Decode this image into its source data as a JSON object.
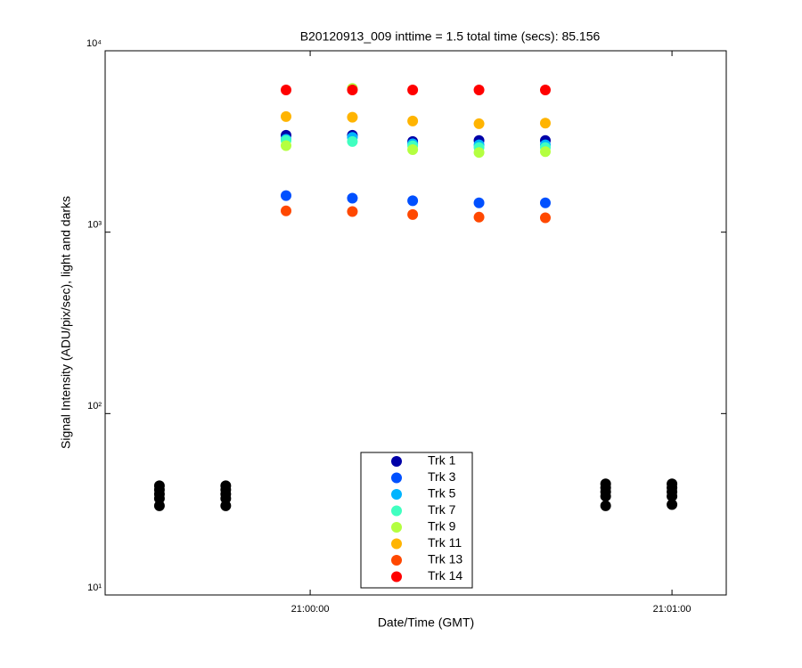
{
  "chart_data": {
    "type": "scatter",
    "title": "B20120913_009 inttime = 1.5 total time (secs): 85.156",
    "xlabel": "Date/Time (GMT)",
    "ylabel": "Signal Intensity (ADU/pix/sec), light and darks",
    "log_y": true,
    "xlim": [
      "20:59:26",
      "21:01:09"
    ],
    "xticks": [
      "21:00:00",
      "21:01:00"
    ],
    "ylim": [
      10,
      10000
    ],
    "yticks": [
      {
        "value": 10,
        "label": "10¹"
      },
      {
        "value": 100,
        "label": "10²"
      },
      {
        "value": 1000,
        "label": "10³"
      },
      {
        "value": 10000,
        "label": "10⁴"
      }
    ],
    "series": [
      {
        "name": "Trk 1",
        "color": "#0000a8",
        "x": [
          "20:59:56",
          "21:00:07",
          "21:00:17",
          "21:00:28",
          "21:00:39"
        ],
        "values": [
          3420,
          3420,
          3160,
          3200,
          3200
        ]
      },
      {
        "name": "Trk 3",
        "color": "#0050ff",
        "x": [
          "20:59:56",
          "21:00:07",
          "21:00:17",
          "21:00:28",
          "21:00:39"
        ],
        "values": [
          1590,
          1540,
          1490,
          1450,
          1450
        ]
      },
      {
        "name": "Trk 5",
        "color": "#00b4ff",
        "x": [
          "20:59:56",
          "21:00:07",
          "21:00:17",
          "21:00:28",
          "21:00:39"
        ],
        "values": [
          3250,
          3330,
          3070,
          3030,
          3030
        ]
      },
      {
        "name": "Trk 7",
        "color": "#40ffc0",
        "x": [
          "20:59:56",
          "21:00:07",
          "21:00:17",
          "21:00:28",
          "21:00:39"
        ],
        "values": [
          3200,
          3160,
          2990,
          2930,
          2930
        ]
      },
      {
        "name": "Trk 9",
        "color": "#b4ff40",
        "x": [
          "20:59:56",
          "21:00:07",
          "21:00:17",
          "21:00:28",
          "21:00:39"
        ],
        "values": [
          3000,
          6200,
          2850,
          2750,
          2780
        ]
      },
      {
        "name": "Trk 11",
        "color": "#ffb400",
        "x": [
          "20:59:56",
          "21:00:07",
          "21:00:17",
          "21:00:28",
          "21:00:39"
        ],
        "values": [
          4340,
          4300,
          4100,
          3960,
          3990
        ]
      },
      {
        "name": "Trk 13",
        "color": "#ff4800",
        "x": [
          "20:59:56",
          "21:00:07",
          "21:00:17",
          "21:00:28",
          "21:00:39"
        ],
        "values": [
          1310,
          1300,
          1250,
          1210,
          1200
        ]
      },
      {
        "name": "Trk 14",
        "color": "#ff0000",
        "x": [
          "20:59:56",
          "21:00:07",
          "21:00:17",
          "21:00:28",
          "21:00:39"
        ],
        "values": [
          6080,
          6080,
          6080,
          6080,
          6080
        ]
      },
      {
        "color": "#000000",
        "x": [
          "20:59:35",
          "20:59:35",
          "20:59:35",
          "20:59:35",
          "20:59:35",
          "20:59:46",
          "20:59:46",
          "20:59:46",
          "20:59:46",
          "20:59:46",
          "21:00:49",
          "21:00:49",
          "21:00:49",
          "21:00:49",
          "21:00:49",
          "21:01:00",
          "21:01:00",
          "21:01:00",
          "21:01:00",
          "21:01:00"
        ],
        "values": [
          40,
          38,
          36,
          34,
          31,
          40,
          38,
          36,
          34,
          31,
          41,
          39,
          37,
          35,
          31,
          41,
          39,
          37,
          35,
          31.5
        ]
      }
    ]
  }
}
